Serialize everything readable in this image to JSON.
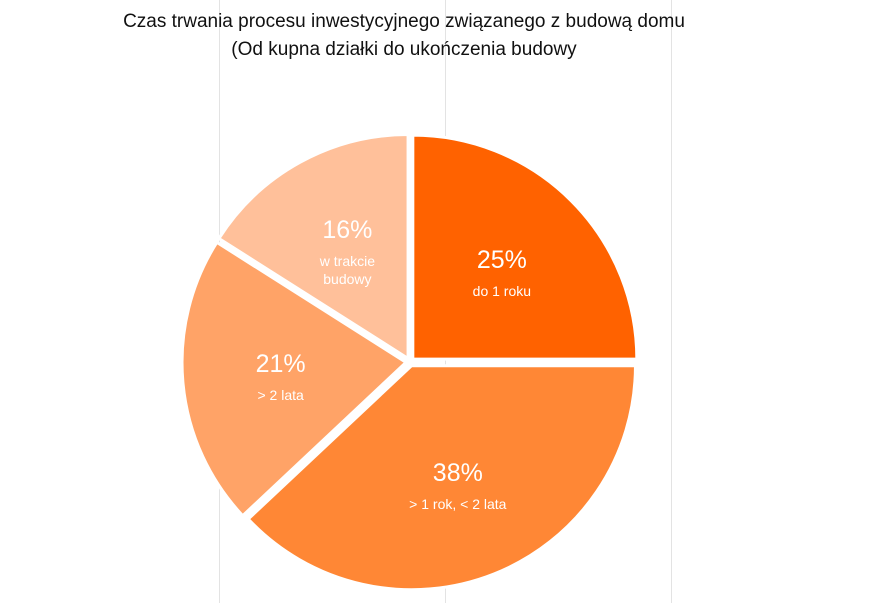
{
  "chart_data": {
    "type": "pie",
    "title": "Czas trwania procesu inwestycyjnego związanego z budową domu",
    "subtitle": "(Od kupna działki do ukończenia budowy",
    "slices": [
      {
        "percent_label": "25%",
        "label": "do 1 roku",
        "value": 25,
        "color": "#ff6200"
      },
      {
        "percent_label": "38%",
        "label": "> 1 rok, < 2 lata",
        "value": 38,
        "color": "#ff8735"
      },
      {
        "percent_label": "21%",
        "label": "> 2 lata",
        "value": 21,
        "color": "#ffa367"
      },
      {
        "percent_label": "16%",
        "label": [
          "w trakcie",
          "budowy"
        ],
        "value": 16,
        "color": "#ffc09a"
      }
    ],
    "grid": true
  }
}
